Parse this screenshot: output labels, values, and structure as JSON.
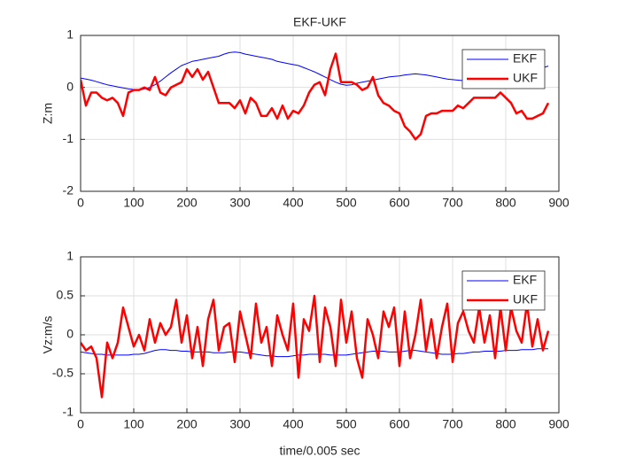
{
  "chart_data": [
    {
      "type": "line",
      "title": "EKF-UKF",
      "ylabel": "Z:m",
      "x": [
        0,
        10,
        20,
        30,
        40,
        50,
        60,
        70,
        80,
        90,
        100,
        110,
        120,
        130,
        140,
        150,
        160,
        170,
        180,
        190,
        200,
        210,
        220,
        230,
        240,
        250,
        260,
        270,
        280,
        290,
        300,
        310,
        320,
        330,
        340,
        350,
        360,
        370,
        380,
        390,
        400,
        410,
        420,
        430,
        440,
        450,
        460,
        470,
        480,
        490,
        500,
        510,
        520,
        530,
        540,
        550,
        560,
        570,
        580,
        590,
        600,
        610,
        620,
        630,
        640,
        650,
        660,
        670,
        680,
        690,
        700,
        710,
        720,
        730,
        740,
        750,
        760,
        770,
        780,
        790,
        800,
        810,
        820,
        830,
        840,
        850,
        860,
        870,
        880
      ],
      "series": [
        {
          "name": "EKF",
          "color": "#0000ff",
          "linewidth": 1,
          "values": [
            0.18,
            0.16,
            0.14,
            0.11,
            0.08,
            0.05,
            0.03,
            0.01,
            -0.01,
            -0.03,
            -0.04,
            -0.05,
            -0.03,
            0.0,
            0.05,
            0.12,
            0.2,
            0.28,
            0.35,
            0.42,
            0.46,
            0.5,
            0.52,
            0.54,
            0.56,
            0.58,
            0.6,
            0.64,
            0.67,
            0.68,
            0.67,
            0.64,
            0.62,
            0.6,
            0.58,
            0.56,
            0.54,
            0.5,
            0.48,
            0.46,
            0.44,
            0.42,
            0.38,
            0.34,
            0.3,
            0.25,
            0.2,
            0.15,
            0.1,
            0.06,
            0.04,
            0.05,
            0.08,
            0.1,
            0.12,
            0.14,
            0.16,
            0.18,
            0.2,
            0.21,
            0.22,
            0.24,
            0.25,
            0.26,
            0.25,
            0.24,
            0.22,
            0.2,
            0.18,
            0.16,
            0.15,
            0.14,
            0.13,
            0.12,
            0.12,
            0.12,
            0.13,
            0.14,
            0.15,
            0.17,
            0.2,
            0.23,
            0.26,
            0.28,
            0.3,
            0.32,
            0.35,
            0.38,
            0.41
          ]
        },
        {
          "name": "UKF",
          "color": "#ff0000",
          "linewidth": 2.5,
          "values": [
            0.15,
            -0.35,
            -0.1,
            -0.1,
            -0.2,
            -0.25,
            -0.2,
            -0.3,
            -0.55,
            -0.1,
            -0.05,
            -0.05,
            0.0,
            -0.05,
            0.2,
            -0.1,
            -0.15,
            0.0,
            0.05,
            0.1,
            0.35,
            0.2,
            0.35,
            0.15,
            0.3,
            0.0,
            -0.3,
            -0.3,
            -0.3,
            -0.4,
            -0.25,
            -0.5,
            -0.2,
            -0.3,
            -0.55,
            -0.55,
            -0.4,
            -0.6,
            -0.35,
            -0.6,
            -0.45,
            -0.5,
            -0.35,
            -0.1,
            0.05,
            0.1,
            -0.15,
            0.35,
            0.65,
            0.1,
            0.1,
            0.1,
            0.05,
            -0.05,
            0.0,
            0.2,
            -0.15,
            -0.3,
            -0.35,
            -0.45,
            -0.5,
            -0.75,
            -0.85,
            -1.0,
            -0.9,
            -0.55,
            -0.5,
            -0.5,
            -0.45,
            -0.45,
            -0.45,
            -0.35,
            -0.4,
            -0.3,
            -0.2,
            -0.2,
            -0.2,
            -0.2,
            -0.2,
            -0.1,
            -0.2,
            -0.3,
            -0.5,
            -0.45,
            -0.6,
            -0.6,
            -0.55,
            -0.5,
            -0.3
          ]
        }
      ],
      "xlim": [
        0,
        900
      ],
      "xticks": [
        0,
        100,
        200,
        300,
        400,
        500,
        600,
        700,
        800,
        900
      ],
      "ylim": [
        -2,
        1
      ],
      "yticks": [
        -2,
        -1,
        0,
        1
      ],
      "grid": true,
      "legend": "northeast"
    },
    {
      "type": "line",
      "ylabel": "Vz:m/s",
      "xlabel": "time/0.005 sec",
      "x": [
        0,
        10,
        20,
        30,
        40,
        50,
        60,
        70,
        80,
        90,
        100,
        110,
        120,
        130,
        140,
        150,
        160,
        170,
        180,
        190,
        200,
        210,
        220,
        230,
        240,
        250,
        260,
        270,
        280,
        290,
        300,
        310,
        320,
        330,
        340,
        350,
        360,
        370,
        380,
        390,
        400,
        410,
        420,
        430,
        440,
        450,
        460,
        470,
        480,
        490,
        500,
        510,
        520,
        530,
        540,
        550,
        560,
        570,
        580,
        590,
        600,
        610,
        620,
        630,
        640,
        650,
        660,
        670,
        680,
        690,
        700,
        710,
        720,
        730,
        740,
        750,
        760,
        770,
        780,
        790,
        800,
        810,
        820,
        830,
        840,
        850,
        860,
        870,
        880
      ],
      "series": [
        {
          "name": "EKF",
          "color": "#0000ff",
          "linewidth": 1,
          "values": [
            -0.22,
            -0.23,
            -0.24,
            -0.25,
            -0.25,
            -0.26,
            -0.26,
            -0.26,
            -0.26,
            -0.26,
            -0.25,
            -0.25,
            -0.24,
            -0.22,
            -0.2,
            -0.19,
            -0.19,
            -0.2,
            -0.2,
            -0.21,
            -0.21,
            -0.22,
            -0.22,
            -0.22,
            -0.22,
            -0.23,
            -0.23,
            -0.23,
            -0.22,
            -0.22,
            -0.22,
            -0.23,
            -0.24,
            -0.25,
            -0.26,
            -0.27,
            -0.27,
            -0.28,
            -0.28,
            -0.28,
            -0.27,
            -0.26,
            -0.26,
            -0.25,
            -0.25,
            -0.25,
            -0.25,
            -0.26,
            -0.26,
            -0.26,
            -0.26,
            -0.25,
            -0.24,
            -0.23,
            -0.22,
            -0.21,
            -0.21,
            -0.21,
            -0.22,
            -0.22,
            -0.22,
            -0.21,
            -0.2,
            -0.2,
            -0.21,
            -0.22,
            -0.23,
            -0.24,
            -0.25,
            -0.25,
            -0.25,
            -0.24,
            -0.24,
            -0.23,
            -0.22,
            -0.22,
            -0.21,
            -0.21,
            -0.21,
            -0.21,
            -0.2,
            -0.2,
            -0.2,
            -0.19,
            -0.19,
            -0.19,
            -0.18,
            -0.18,
            -0.18
          ]
        },
        {
          "name": "UKF",
          "color": "#ff0000",
          "linewidth": 2.5,
          "values": [
            -0.1,
            -0.2,
            -0.15,
            -0.3,
            -0.8,
            -0.1,
            -0.3,
            -0.1,
            0.35,
            0.1,
            -0.15,
            0.0,
            -0.2,
            0.2,
            -0.1,
            0.15,
            0.0,
            0.1,
            0.45,
            -0.1,
            0.25,
            -0.3,
            0.1,
            -0.4,
            0.2,
            0.45,
            -0.2,
            0.1,
            0.15,
            -0.35,
            0.3,
            0.0,
            -0.3,
            0.4,
            -0.1,
            0.1,
            -0.4,
            0.25,
            0.0,
            -0.2,
            0.4,
            -0.55,
            0.2,
            0.05,
            0.5,
            -0.35,
            0.35,
            0.1,
            -0.4,
            0.45,
            -0.1,
            0.3,
            -0.3,
            -0.55,
            0.2,
            0.0,
            -0.3,
            0.3,
            0.1,
            0.35,
            -0.4,
            0.3,
            -0.3,
            0.0,
            0.45,
            -0.2,
            0.2,
            -0.3,
            0.1,
            0.4,
            -0.35,
            0.15,
            0.3,
            0.05,
            -0.1,
            0.35,
            -0.1,
            0.25,
            -0.3,
            0.35,
            -0.2,
            0.35,
            0.05,
            -0.1,
            0.4,
            -0.15,
            0.2,
            -0.2,
            0.05
          ]
        }
      ],
      "xlim": [
        0,
        900
      ],
      "xticks": [
        0,
        100,
        200,
        300,
        400,
        500,
        600,
        700,
        800,
        900
      ],
      "ylim": [
        -1,
        1
      ],
      "yticks": [
        -1,
        -0.5,
        0,
        0.5,
        1
      ],
      "grid": true,
      "legend": "northeast"
    }
  ]
}
